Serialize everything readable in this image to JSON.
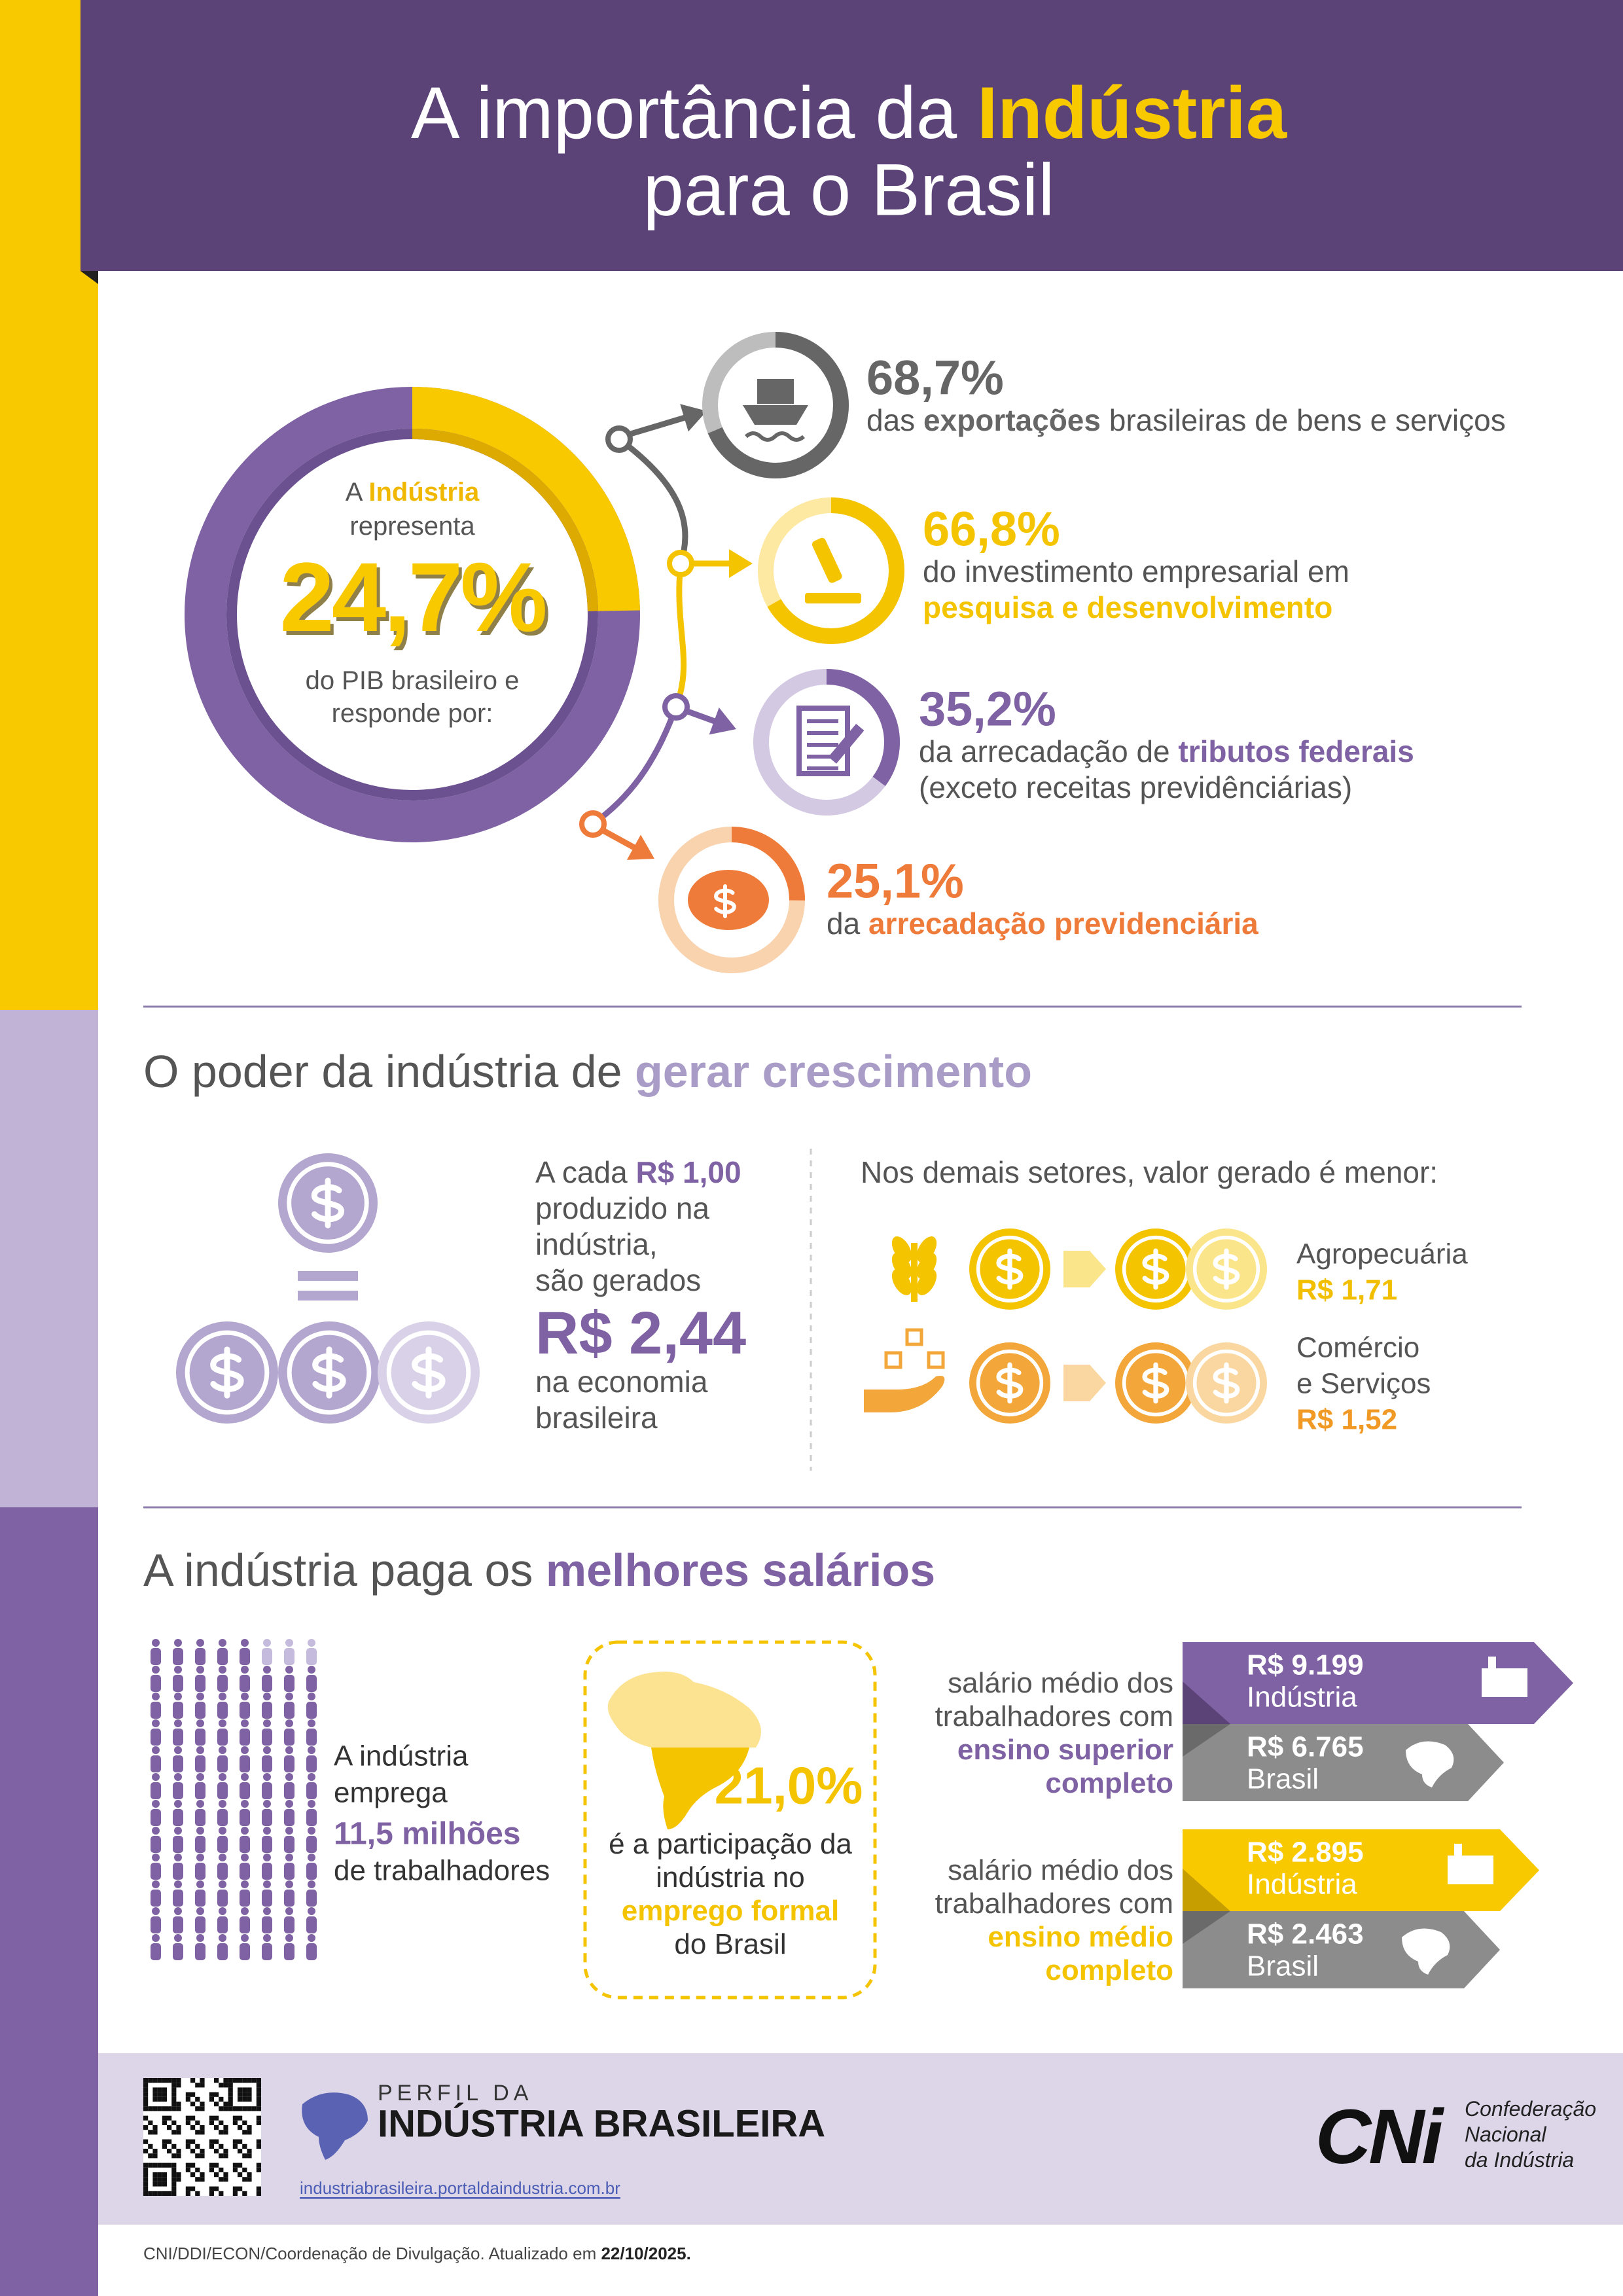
{
  "header": {
    "title_line1": [
      {
        "text": "A importância da "
      },
      {
        "text": "Indústria",
        "emphasis": true
      }
    ],
    "title_line2": "para o Brasil"
  },
  "gdp": {
    "lines_top": [
      [
        {
          "text": "A "
        },
        {
          "text": "Indústria",
          "emphasis": true
        }
      ],
      [
        {
          "text": "representa"
        }
      ]
    ],
    "share": {
      "value": 24.7,
      "label": "24,7%"
    },
    "lines_bottom": [
      [
        {
          "text": "do PIB brasileiro e"
        }
      ],
      [
        {
          "text": "responde por:"
        }
      ]
    ]
  },
  "contributions": [
    {
      "value": 68.7,
      "label": "68,7%",
      "lines": [
        [
          {
            "text": "das "
          },
          {
            "text": "exportações",
            "emphasis": true
          },
          {
            "text": " brasileiras de bens e serviços"
          }
        ]
      ]
    },
    {
      "value": 66.8,
      "label": "66,8%",
      "lines": [
        [
          {
            "text": "do investimento empresarial em"
          }
        ],
        [
          {
            "text": "pesquisa e desenvolvimento",
            "emphasis": true
          }
        ]
      ]
    },
    {
      "value": 35.2,
      "label": "35,2%",
      "lines": [
        [
          {
            "text": "da arrecadação de "
          },
          {
            "text": "tributos federais",
            "emphasis": true
          }
        ],
        [
          {
            "text": "(exceto receitas previdênciárias)"
          }
        ]
      ]
    },
    {
      "value": 25.1,
      "label": "25,1%",
      "lines": [
        [
          {
            "text": "da "
          },
          {
            "text": "arrecadação previdenciária",
            "emphasis": true
          }
        ]
      ]
    }
  ],
  "growth": {
    "heading": [
      {
        "text": "O poder da indústria de "
      },
      {
        "text": "gerar crescimento",
        "emphasis": true
      }
    ],
    "industry_lines": [
      [
        {
          "text": "A cada "
        },
        {
          "text": "R$ 1,00",
          "emphasis": true
        }
      ],
      [
        {
          "text": "produzido na"
        }
      ],
      [
        {
          "text": "indústria,"
        }
      ],
      [
        {
          "text": "são gerados"
        }
      ]
    ],
    "generated": "R$ 2,44",
    "industry_lines_after": [
      [
        {
          "text": "na economia"
        }
      ],
      [
        {
          "text": "brasileira"
        }
      ]
    ],
    "others_intro": "Nos demais setores, valor gerado é menor:",
    "sectors": [
      {
        "lines": [
          "Agropecuária"
        ],
        "value": "R$ 1,71"
      },
      {
        "lines": [
          "Comércio",
          "e Serviços"
        ],
        "value": "R$ 1,52"
      }
    ]
  },
  "wages": {
    "heading": [
      {
        "text": "A indústria paga os "
      },
      {
        "text": "melhores salários",
        "emphasis": true
      }
    ],
    "employment": {
      "lines": [
        "A indústria",
        "emprega"
      ],
      "workers": "11,5 milhões",
      "lines_after": [
        "de trabalhadores"
      ]
    },
    "formal": {
      "share": "21,0%",
      "lines": [
        [
          {
            "text": "é a participação da"
          }
        ],
        [
          {
            "text": "indústria no"
          }
        ],
        [
          {
            "text": "emprego formal",
            "emphasis": true
          }
        ],
        [
          {
            "text": "do Brasil"
          }
        ]
      ]
    },
    "groups": [
      {
        "lines": [
          [
            {
              "text": "salário médio dos"
            }
          ],
          [
            {
              "text": "trabalhadores com"
            }
          ],
          [
            {
              "text": "ensino superior",
              "emphasis": true
            }
          ],
          [
            {
              "text": "completo",
              "emphasis": true
            }
          ]
        ],
        "industry": {
          "value": "R$ 9.199",
          "label": "Indústria"
        },
        "brazil": {
          "value": "R$ 6.765",
          "label": "Brasil"
        }
      },
      {
        "lines": [
          [
            {
              "text": "salário médio dos"
            }
          ],
          [
            {
              "text": "trabalhadores com"
            }
          ],
          [
            {
              "text": "ensino médio",
              "emphasis": true
            }
          ],
          [
            {
              "text": "completo",
              "emphasis": true
            }
          ]
        ],
        "industry": {
          "value": "R$ 2.895",
          "label": "Indústria"
        },
        "brazil": {
          "value": "R$ 2.463",
          "label": "Brasil"
        }
      }
    ]
  },
  "footer": {
    "brand_top": "PERFIL DA",
    "brand": "INDÚSTRIA BRASILEIRA",
    "url": "industriabrasileira.portaldaindustria.com.br",
    "cni": "CNi",
    "cni_name": [
      "Confederação",
      "Nacional",
      "da Indústria"
    ],
    "credit": [
      {
        "text": "CNI/DDI/ECON/Coordenação de Divulgação. Atualizado em "
      },
      {
        "text": "22/10/2025.",
        "emphasis": true
      }
    ]
  }
}
